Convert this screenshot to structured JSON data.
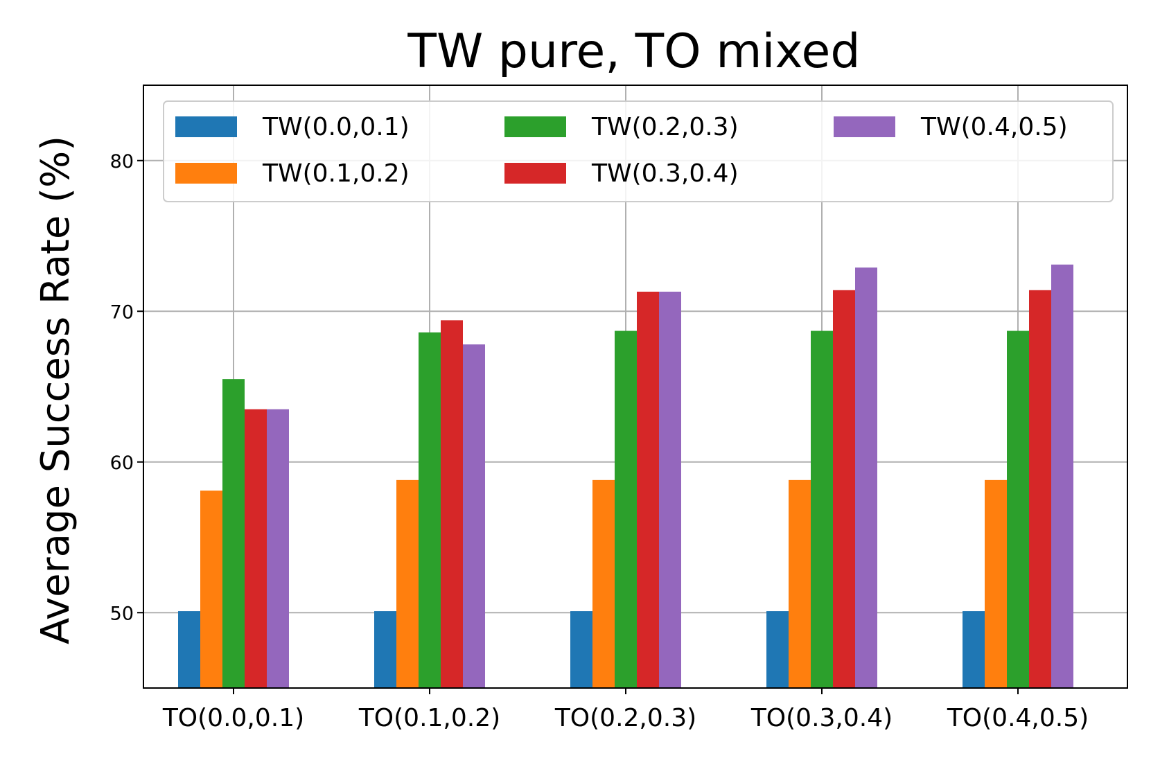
{
  "chart_data": {
    "type": "bar",
    "title": "TW pure, TO mixed",
    "xlabel": "",
    "ylabel": "Average Success Rate (%)",
    "ylim": [
      45,
      85
    ],
    "yticks": [
      50,
      60,
      70,
      80
    ],
    "grid": true,
    "legend": {
      "placement": "top",
      "columns": 3
    },
    "categories": [
      "TO(0.0,0.1)",
      "TO(0.1,0.2)",
      "TO(0.2,0.3)",
      "TO(0.3,0.4)",
      "TO(0.4,0.5)"
    ],
    "series": [
      {
        "name": "TW(0.0,0.1)",
        "color": "#1f77b4",
        "values": [
          50.1,
          50.1,
          50.1,
          50.1,
          50.1
        ]
      },
      {
        "name": "TW(0.1,0.2)",
        "color": "#ff7f0e",
        "values": [
          58.1,
          58.8,
          58.8,
          58.8,
          58.8
        ]
      },
      {
        "name": "TW(0.2,0.3)",
        "color": "#2ca02c",
        "values": [
          65.5,
          68.6,
          68.7,
          68.7,
          68.7
        ]
      },
      {
        "name": "TW(0.3,0.4)",
        "color": "#d62728",
        "values": [
          63.5,
          69.4,
          71.3,
          71.4,
          71.4
        ]
      },
      {
        "name": "TW(0.4,0.5)",
        "color": "#9467bd",
        "values": [
          63.5,
          67.8,
          71.3,
          72.9,
          73.1
        ]
      }
    ]
  }
}
